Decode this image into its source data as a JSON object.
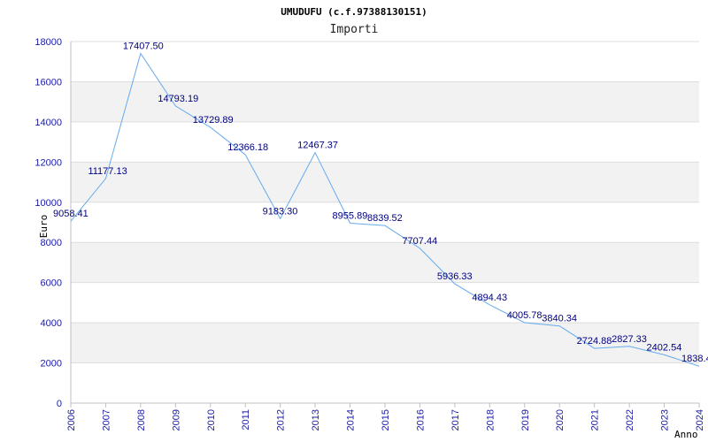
{
  "chart_data": {
    "type": "line",
    "title": "UMUDUFU (c.f.97388130151)",
    "subtitle": "Importi",
    "xlabel": "Anno",
    "ylabel": "Euro",
    "ylim": [
      0,
      18000
    ],
    "yticks": [
      "0",
      "2000",
      "4000",
      "6000",
      "8000",
      "10000",
      "12000",
      "14000",
      "16000",
      "18000"
    ],
    "grid": true,
    "x": [
      "2006",
      "2007",
      "2008",
      "2009",
      "2010",
      "2011",
      "2012",
      "2013",
      "2014",
      "2015",
      "2016",
      "2017",
      "2018",
      "2019",
      "2020",
      "2021",
      "2022",
      "2023",
      "2024"
    ],
    "values": [
      9058.41,
      11177.13,
      17407.5,
      14793.19,
      13729.89,
      12366.18,
      9183.3,
      12467.37,
      8955.89,
      8839.52,
      7707.44,
      5936.33,
      4894.43,
      4005.78,
      3840.34,
      2724.88,
      2827.33,
      2402.54,
      1838.4
    ],
    "labels": [
      "9058.41",
      "11177.13",
      "17407.50",
      "14793.19",
      "13729.89",
      "12366.18",
      "9183.30",
      "12467.37",
      "8955.89",
      "8839.52",
      "7707.44",
      "5936.33",
      "4894.43",
      "4005.78",
      "3840.34",
      "2724.88",
      "2827.33",
      "2402.54",
      "1838.4"
    ],
    "colors": {
      "line": "#66aaee",
      "band": "#f2f2f2",
      "gridline": "#dddddd",
      "axis": "#c0c0c0",
      "tick_text": "#1a1aa6",
      "label_text": "#000080"
    }
  }
}
